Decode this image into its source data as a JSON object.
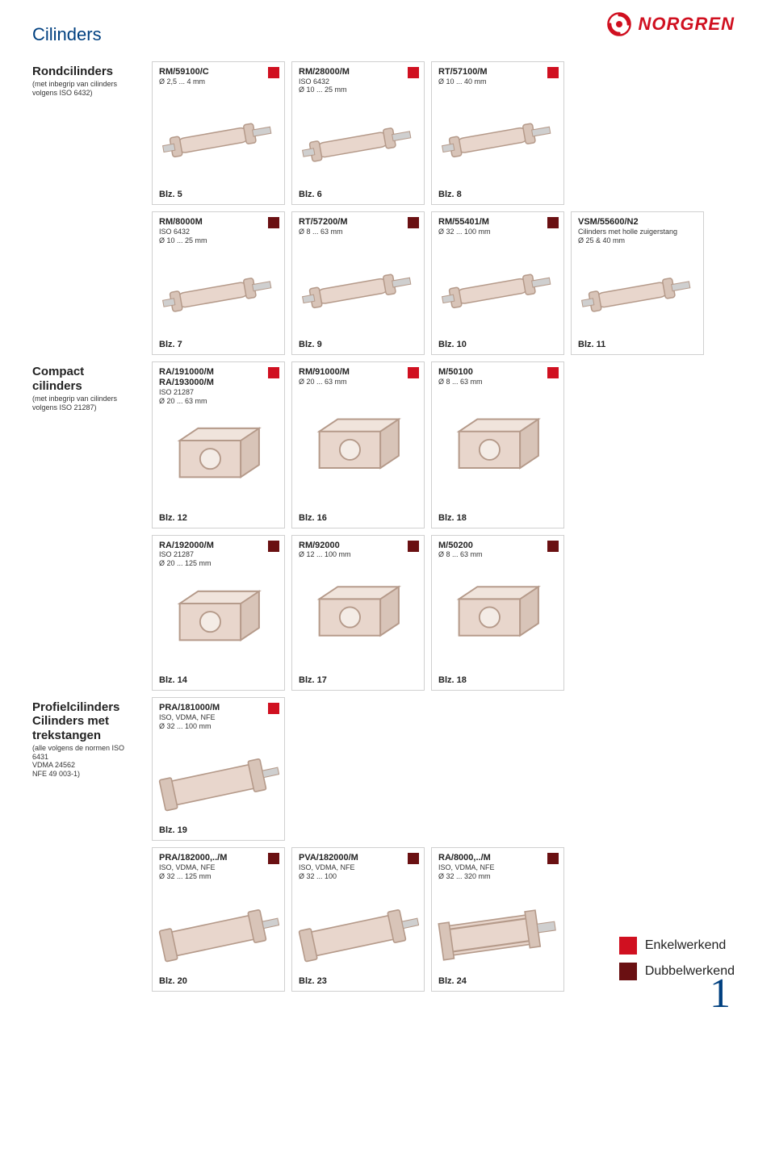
{
  "colors": {
    "accent": "#d01020",
    "title": "#004080",
    "border": "#d0d0d0",
    "text": "#222222",
    "prod_fill": "#e8d6cc",
    "prod_stroke": "#b59a8a"
  },
  "brand": {
    "name": "NORGREN"
  },
  "page_title": "Cilinders",
  "page_number": "1",
  "legend": {
    "single": "Enkelwerkend",
    "double": "Dubbelwerkend",
    "single_color": "#d01020",
    "double_color": "#6a1012"
  },
  "sections": [
    {
      "label_title": "Rondcilinders",
      "label_sub": "(met inbegrip van cilinders volgens ISO 6432)",
      "rows": [
        [
          {
            "title": "RM/59100/C",
            "subs": [
              "Ø 2,5 ... 4 mm"
            ],
            "indicator": "#d01020",
            "page": "Blz. 5",
            "shape": "rod"
          },
          {
            "title": "RM/28000/M",
            "subs": [
              "ISO 6432",
              "Ø 10 ... 25 mm"
            ],
            "indicator": "#d01020",
            "page": "Blz. 6",
            "shape": "rod"
          },
          {
            "title": "RT/57100/M",
            "subs": [
              "Ø 10 ... 40 mm"
            ],
            "indicator": "#d01020",
            "page": "Blz. 8",
            "shape": "rod"
          }
        ],
        [
          {
            "title": "RM/8000M",
            "subs": [
              "ISO 6432",
              "Ø 10 ... 25 mm"
            ],
            "indicator": "#6a1012",
            "page": "Blz. 7",
            "shape": "rod"
          },
          {
            "title": "RT/57200/M",
            "subs": [
              "Ø 8 ... 63 mm"
            ],
            "indicator": "#6a1012",
            "page": "Blz. 9",
            "shape": "rod"
          },
          {
            "title": "RM/55401/M",
            "subs": [
              "Ø 32 ... 100 mm"
            ],
            "indicator": "#6a1012",
            "page": "Blz. 10",
            "shape": "rod"
          },
          {
            "title": "VSM/55600/N2",
            "subs": [
              "Cilinders met holle zuigerstang",
              "Ø 25 & 40 mm"
            ],
            "indicator": null,
            "page": "Blz. 11",
            "shape": "rod"
          }
        ]
      ]
    },
    {
      "label_title": "Compact cilinders",
      "label_sub": "(met inbegrip van cilinders volgens ISO 21287)",
      "rows": [
        [
          {
            "title": "RA/191000/M\nRA/193000/M",
            "subs": [
              "ISO 21287",
              "Ø 20 ... 63 mm"
            ],
            "indicator": "#d01020",
            "page": "Blz. 12",
            "shape": "block"
          },
          {
            "title": "RM/91000/M",
            "subs": [
              "Ø 20 ... 63 mm"
            ],
            "indicator": "#d01020",
            "page": "Blz. 16",
            "shape": "block"
          },
          {
            "title": "M/50100",
            "subs": [
              "Ø 8 ... 63 mm"
            ],
            "indicator": "#d01020",
            "page": "Blz. 18",
            "shape": "block"
          }
        ],
        [
          {
            "title": "RA/192000/M",
            "subs": [
              "ISO 21287",
              "Ø 20 ... 125 mm"
            ],
            "indicator": "#6a1012",
            "page": "Blz. 14",
            "shape": "block"
          },
          {
            "title": "RM/92000",
            "subs": [
              "Ø 12 ... 100 mm"
            ],
            "indicator": "#6a1012",
            "page": "Blz. 17",
            "shape": "block"
          },
          {
            "title": "M/50200",
            "subs": [
              "Ø 8 ... 63 mm"
            ],
            "indicator": "#6a1012",
            "page": "Blz. 18",
            "shape": "block"
          }
        ]
      ]
    },
    {
      "label_title": "Profielcilinders Cilinders met trekstangen",
      "label_sub": "(alle volgens de normen ISO 6431\nVDMA 24562\nNFE 49 003-1)",
      "rows": [
        [
          {
            "title": "PRA/181000/M",
            "subs": [
              "ISO, VDMA, NFE",
              "Ø 32 ... 100 mm"
            ],
            "indicator": "#d01020",
            "page": "Blz. 19",
            "shape": "profile"
          }
        ],
        [
          {
            "title": "PRA/182000,../M",
            "subs": [
              "ISO, VDMA, NFE",
              "Ø 32 ... 125 mm"
            ],
            "indicator": "#6a1012",
            "page": "Blz. 20",
            "shape": "profile"
          },
          {
            "title": "PVA/182000/M",
            "subs": [
              "ISO, VDMA, NFE",
              "Ø 32 ... 100"
            ],
            "indicator": "#6a1012",
            "page": "Blz. 23",
            "shape": "profile"
          },
          {
            "title": "RA/8000,../M",
            "subs": [
              "ISO, VDMA, NFE",
              "Ø 32 ... 320 mm"
            ],
            "indicator": "#6a1012",
            "page": "Blz. 24",
            "shape": "tierod"
          }
        ]
      ]
    }
  ]
}
